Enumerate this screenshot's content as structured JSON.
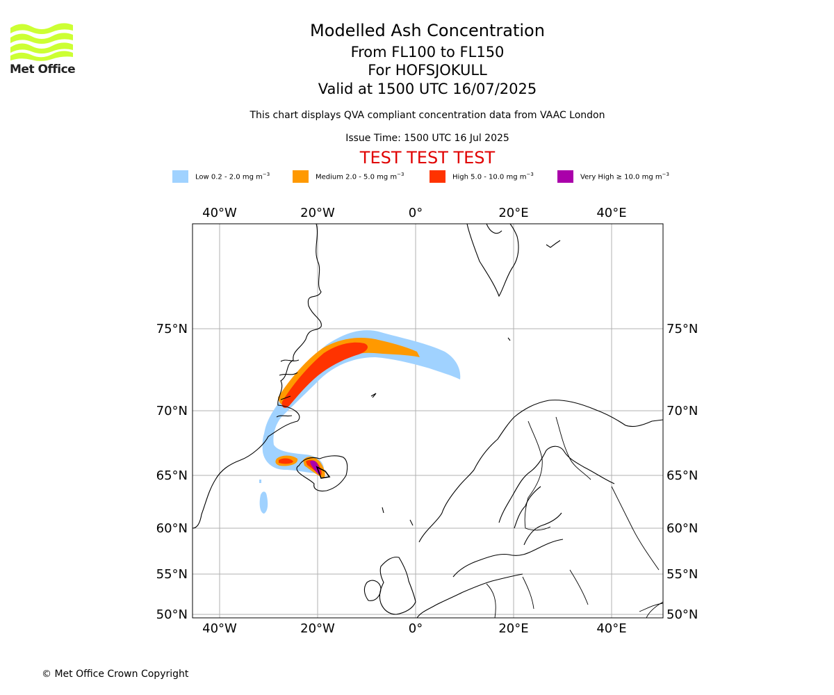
{
  "logo": {
    "text": "Met Office",
    "color": "#ccff33"
  },
  "titles": {
    "line1": "Modelled Ash Concentration",
    "line2": "From FL100 to FL150",
    "line3": "For HOFSJOKULL",
    "line4": "Valid at 1500 UTC 16/07/2025",
    "description": "This chart displays QVA compliant concentration data from VAAC London",
    "issue": "Issue Time: 1500 UTC 16 Jul 2025",
    "test": "TEST TEST TEST"
  },
  "legend": [
    {
      "label": "Low 0.2 - 2.0 mg m",
      "exp": "−3",
      "color": "#a0d2ff"
    },
    {
      "label": "Medium 2.0 - 5.0 mg m",
      "exp": "−3",
      "color": "#ff9900"
    },
    {
      "label": "High 5.0 - 10.0 mg m",
      "exp": "−3",
      "color": "#ff3300"
    },
    {
      "label": "Very High  ≥  10.0 mg m",
      "exp": "−3",
      "color": "#aa00aa"
    }
  ],
  "map": {
    "lon_ticks": [
      "40°W",
      "20°W",
      "0°",
      "20°E",
      "40°E"
    ],
    "lat_ticks": [
      "75°N",
      "70°N",
      "65°N",
      "60°N",
      "55°N",
      "50°N"
    ],
    "lon_values": [
      -40,
      -20,
      0,
      20,
      40
    ],
    "lat_values": [
      75,
      70,
      65,
      60,
      55,
      50
    ],
    "grid": true,
    "grid_color": "#b0b0b0"
  },
  "copyright": "© Met Office Crown Copyright"
}
